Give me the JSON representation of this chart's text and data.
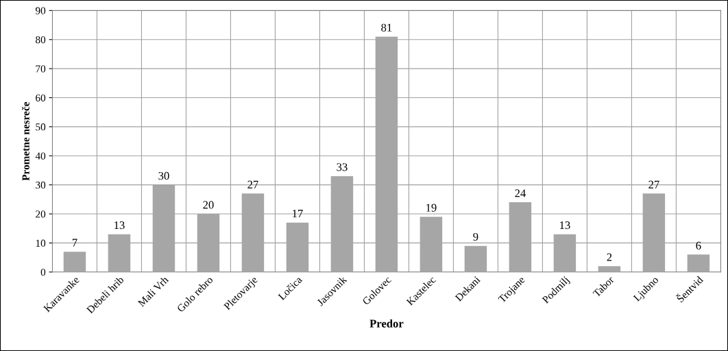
{
  "chart_data": {
    "type": "bar",
    "xlabel": "Predor",
    "ylabel": "Prometne nesreče",
    "categories": [
      "Karavanke",
      "Debeli hrib",
      "Mali Vrh",
      "Golo rebro",
      "Pletovarje",
      "Ločica",
      "Jasovnik",
      "Golovec",
      "Kastelec",
      "Dekani",
      "Trojane",
      "Podmilj",
      "Tabor",
      "Ljubno",
      "Šentvid"
    ],
    "values": [
      7,
      13,
      30,
      20,
      27,
      17,
      33,
      81,
      19,
      9,
      24,
      13,
      2,
      27,
      6
    ],
    "color": "#a6a6a6",
    "ylim": [
      0,
      90
    ],
    "yticks": [
      0,
      10,
      20,
      30,
      40,
      50,
      60,
      70,
      80,
      90
    ],
    "grid": true,
    "data_labels": true
  }
}
